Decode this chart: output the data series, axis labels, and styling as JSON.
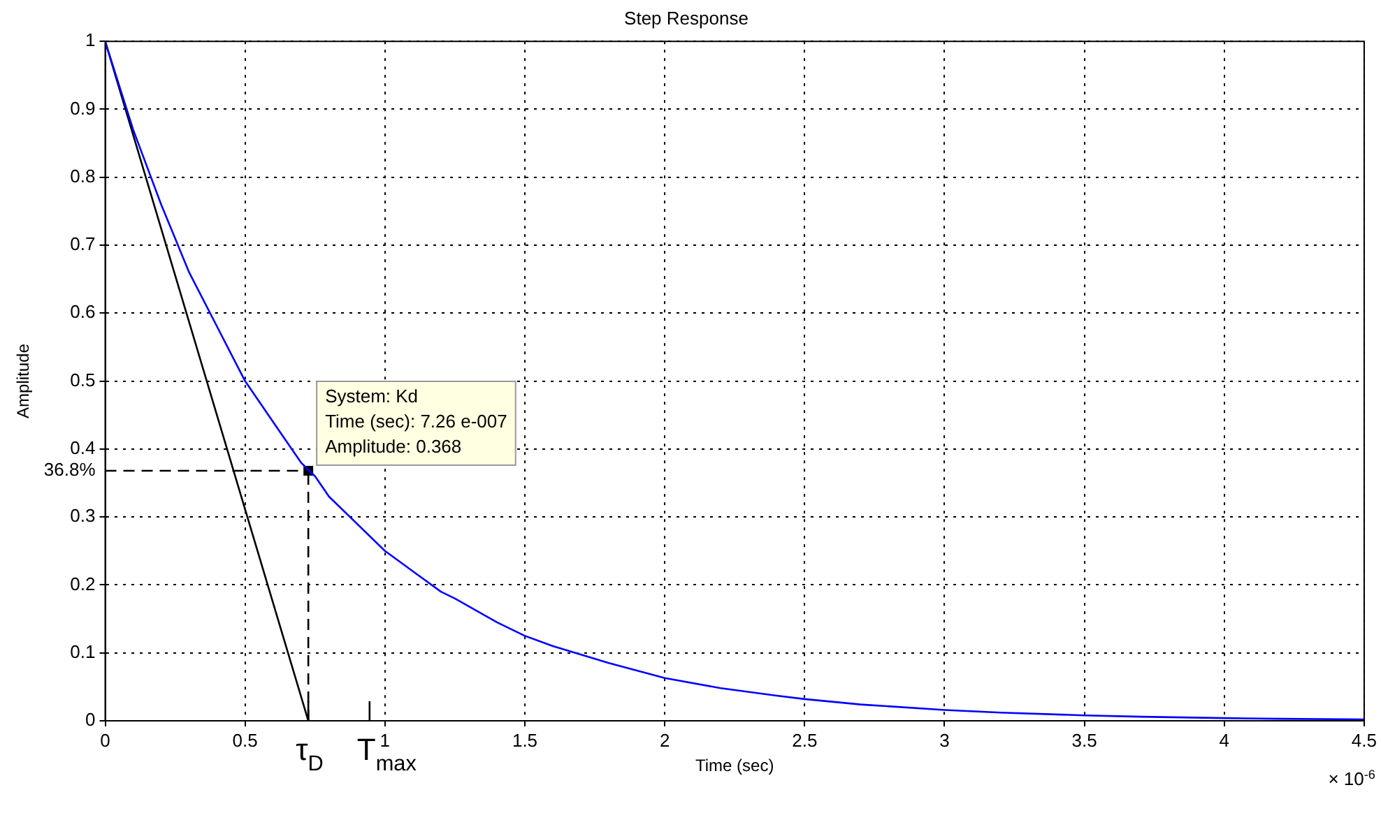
{
  "chart_data": {
    "type": "line",
    "title": "Step Response",
    "xlabel": "Time (sec)",
    "ylabel": "Amplitude",
    "xlim": [
      0,
      4.5
    ],
    "xticks": [
      0,
      0.5,
      1,
      1.5,
      2,
      2.5,
      3,
      3.5,
      4,
      4.5
    ],
    "ylim": [
      0,
      1
    ],
    "yticks": [
      0,
      0.1,
      0.2,
      0.3,
      {
        "value": 0.368,
        "label": "36.8%"
      },
      0.4,
      0.5,
      0.6,
      0.7,
      0.8,
      0.9,
      1
    ],
    "grid": true,
    "legend": false,
    "marker": "none",
    "series": [
      {
        "type": "line",
        "color": "#0000ff",
        "x": [
          0,
          0.1,
          0.2,
          0.25,
          0.3,
          0.4,
          0.5,
          0.6,
          0.7,
          0.75,
          0.8,
          0.9,
          1,
          1.1,
          1.2,
          1.25,
          1.4,
          1.5,
          1.6,
          1.8,
          2,
          2.2,
          2.4,
          2.5,
          2.7,
          3,
          3.2,
          3.5,
          3.7,
          4,
          4.2,
          4.5
        ],
        "values": [
          1,
          0.87,
          0.76,
          0.71,
          0.66,
          0.58,
          0.5,
          0.44,
          0.38,
          0.36,
          0.33,
          0.29,
          0.25,
          0.22,
          0.19,
          0.18,
          0.145,
          0.125,
          0.11,
          0.085,
          0.063,
          0.048,
          0.037,
          0.032,
          0.024,
          0.016,
          0.012,
          0.008,
          0.006,
          0.004,
          0.003,
          0.002
        ]
      },
      {
        "type": "line",
        "color": "#000000",
        "x": [
          0,
          0.726
        ],
        "values": [
          1,
          0
        ]
      },
      {
        "type": "scatter",
        "color": "#000000",
        "marker": "square",
        "x": [
          0.726
        ],
        "values": [
          0.368
        ]
      }
    ],
    "ref_lines": [
      {
        "axis": "y",
        "value": 0.368,
        "color": "#000000",
        "line_style": "dashed"
      },
      {
        "axis": "x",
        "value": 0.726,
        "color": "#000000",
        "line_style": "dashed"
      }
    ],
    "annotations": [
      {
        "text": "System: Kd\nTime (sec): 7.26 e-007\nAmplitude: 0.368",
        "x": 0.726,
        "y": 0.368
      },
      {
        "text": "τ$_{D}$",
        "x": 0.726,
        "y": 0
      },
      "T$_{max}$",
      "× 10$^{-6}$"
    ]
  }
}
